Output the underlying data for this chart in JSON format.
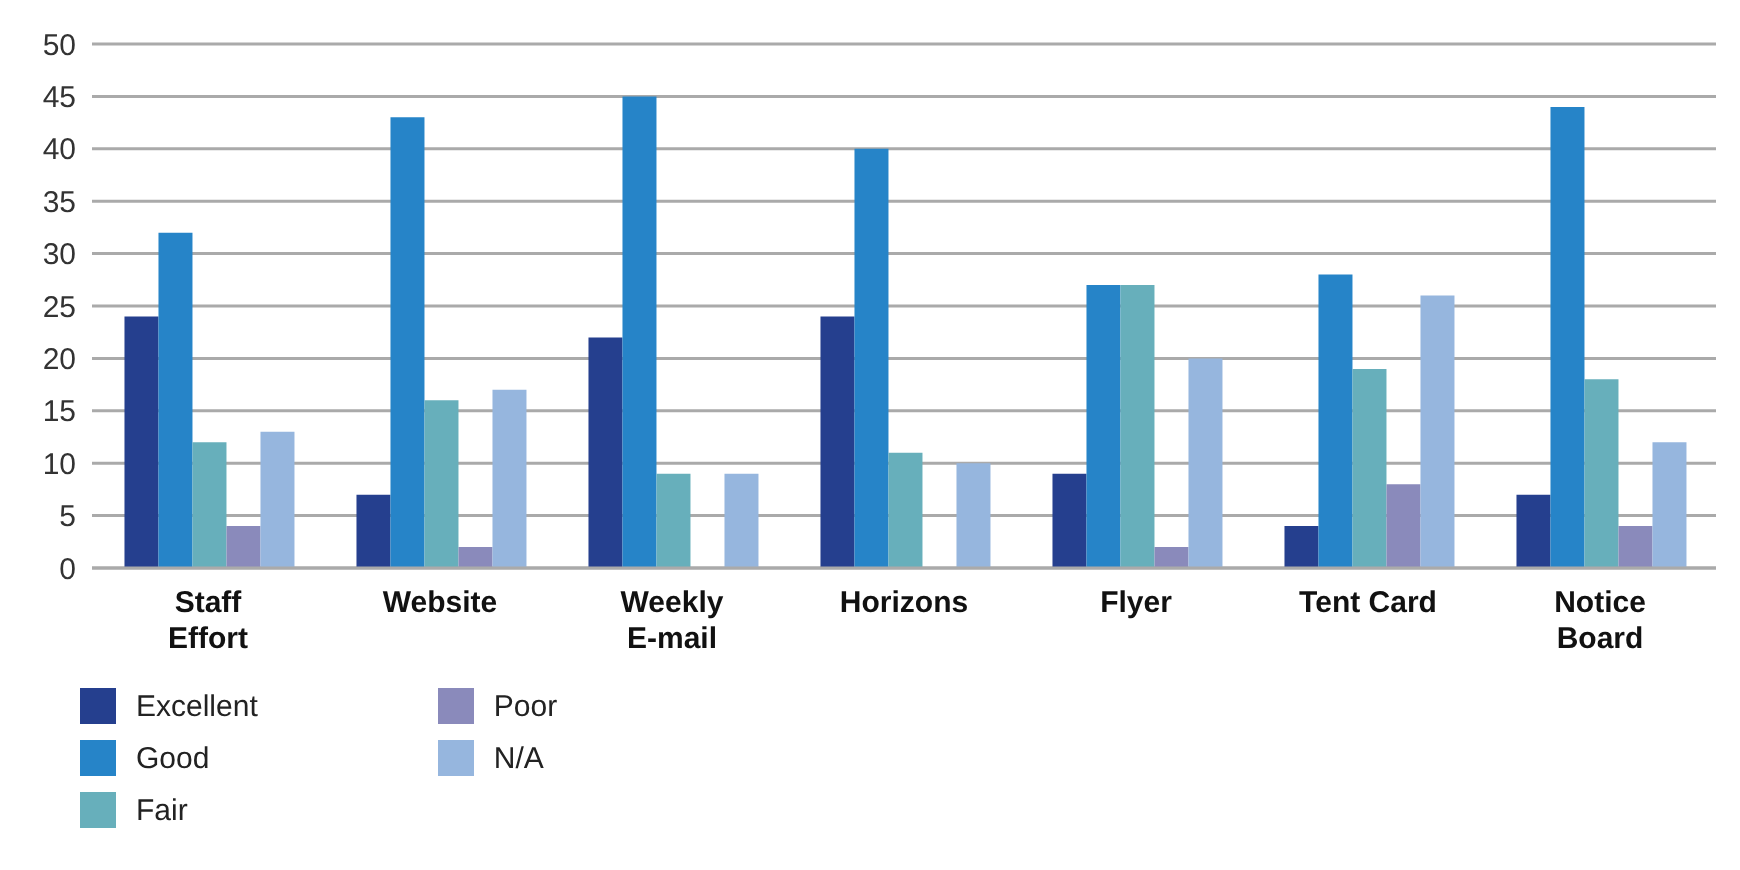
{
  "chart_data": {
    "type": "bar",
    "categories": [
      "Staff\nEffort",
      "Website",
      "Weekly\nE-mail",
      "Horizons",
      "Flyer",
      "Tent Card",
      "Notice\nBoard"
    ],
    "series": [
      {
        "name": "Excellent",
        "color": "#253f8e",
        "values": [
          24,
          7,
          22,
          24,
          9,
          4,
          7
        ]
      },
      {
        "name": "Good",
        "color": "#2684c8",
        "values": [
          32,
          43,
          45,
          40,
          27,
          28,
          44
        ]
      },
      {
        "name": "Fair",
        "color": "#67afbb",
        "values": [
          12,
          16,
          9,
          11,
          27,
          19,
          18
        ]
      },
      {
        "name": "Poor",
        "color": "#8a8abb",
        "values": [
          4,
          2,
          0,
          0,
          2,
          8,
          4
        ]
      },
      {
        "name": "N/A",
        "color": "#96b6de",
        "values": [
          13,
          17,
          9,
          10,
          20,
          26,
          12
        ]
      }
    ],
    "ylim": [
      0,
      50
    ],
    "yticks": [
      0,
      5,
      10,
      15,
      20,
      25,
      30,
      35,
      40,
      45,
      50
    ],
    "grid": "y",
    "legend": "bottom left"
  }
}
